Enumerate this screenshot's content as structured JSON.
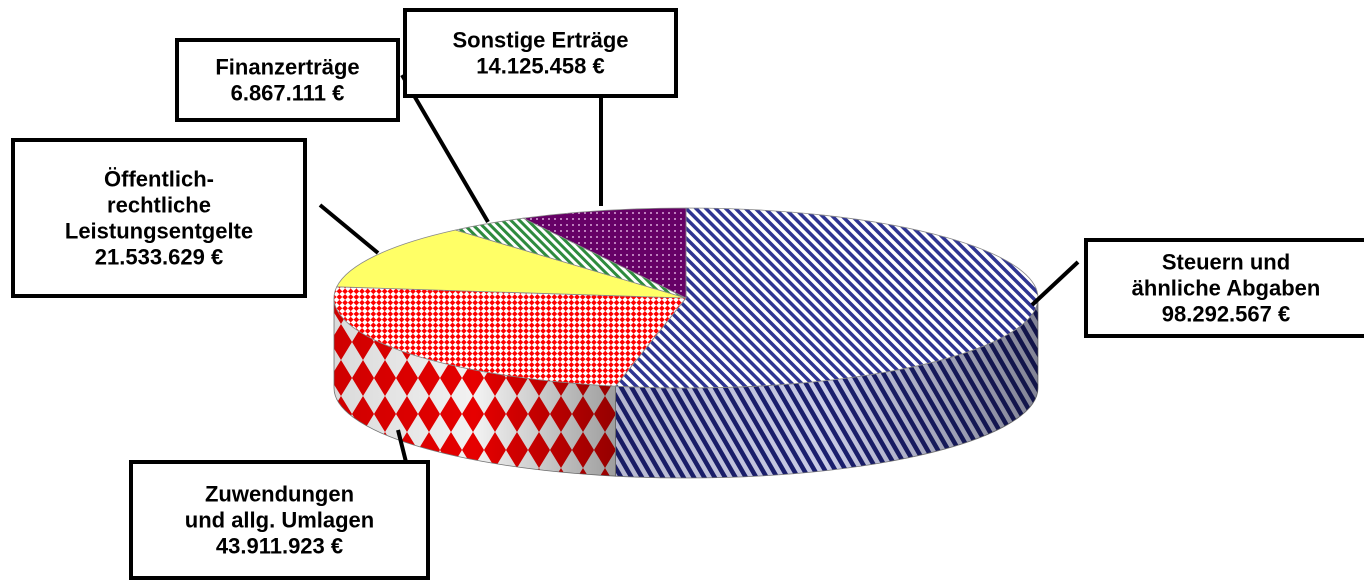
{
  "chart_data": {
    "type": "pie",
    "style": "3d-exploded-none",
    "title": "",
    "slices": [
      {
        "name": "Steuern und ähnliche Abgaben",
        "label_lines": [
          "Steuern und",
          "ähnliche Abgaben"
        ],
        "value_label": "98.292.567 €",
        "value": 98292567,
        "color": "#3a3f9e",
        "pattern": "diagonal-stripes"
      },
      {
        "name": "Zuwendungen und allg. Umlagen",
        "label_lines": [
          "Zuwendungen",
          "und allg. Umlagen"
        ],
        "value_label": "43.911.923 €",
        "value": 43911923,
        "color": "#ff0000",
        "pattern": "diamond-check"
      },
      {
        "name": "Öffentlich-rechtliche Leistungsentgelte",
        "label_lines": [
          "Öffentlich-",
          "rechtliche",
          "Leistungsentgelte"
        ],
        "value_label": "21.533.629 €",
        "value": 21533629,
        "color": "#ffff66",
        "pattern": "solid"
      },
      {
        "name": "Finanzerträge",
        "label_lines": [
          "Finanzerträge"
        ],
        "value_label": "6.867.111 €",
        "value": 6867111,
        "color": "#2e8b3e",
        "pattern": "diagonal-stripes"
      },
      {
        "name": "Sonstige Erträge",
        "label_lines": [
          "Sonstige Erträge"
        ],
        "value_label": "14.125.458 €",
        "value": 14125458,
        "color": "#660066",
        "pattern": "dots"
      }
    ]
  }
}
